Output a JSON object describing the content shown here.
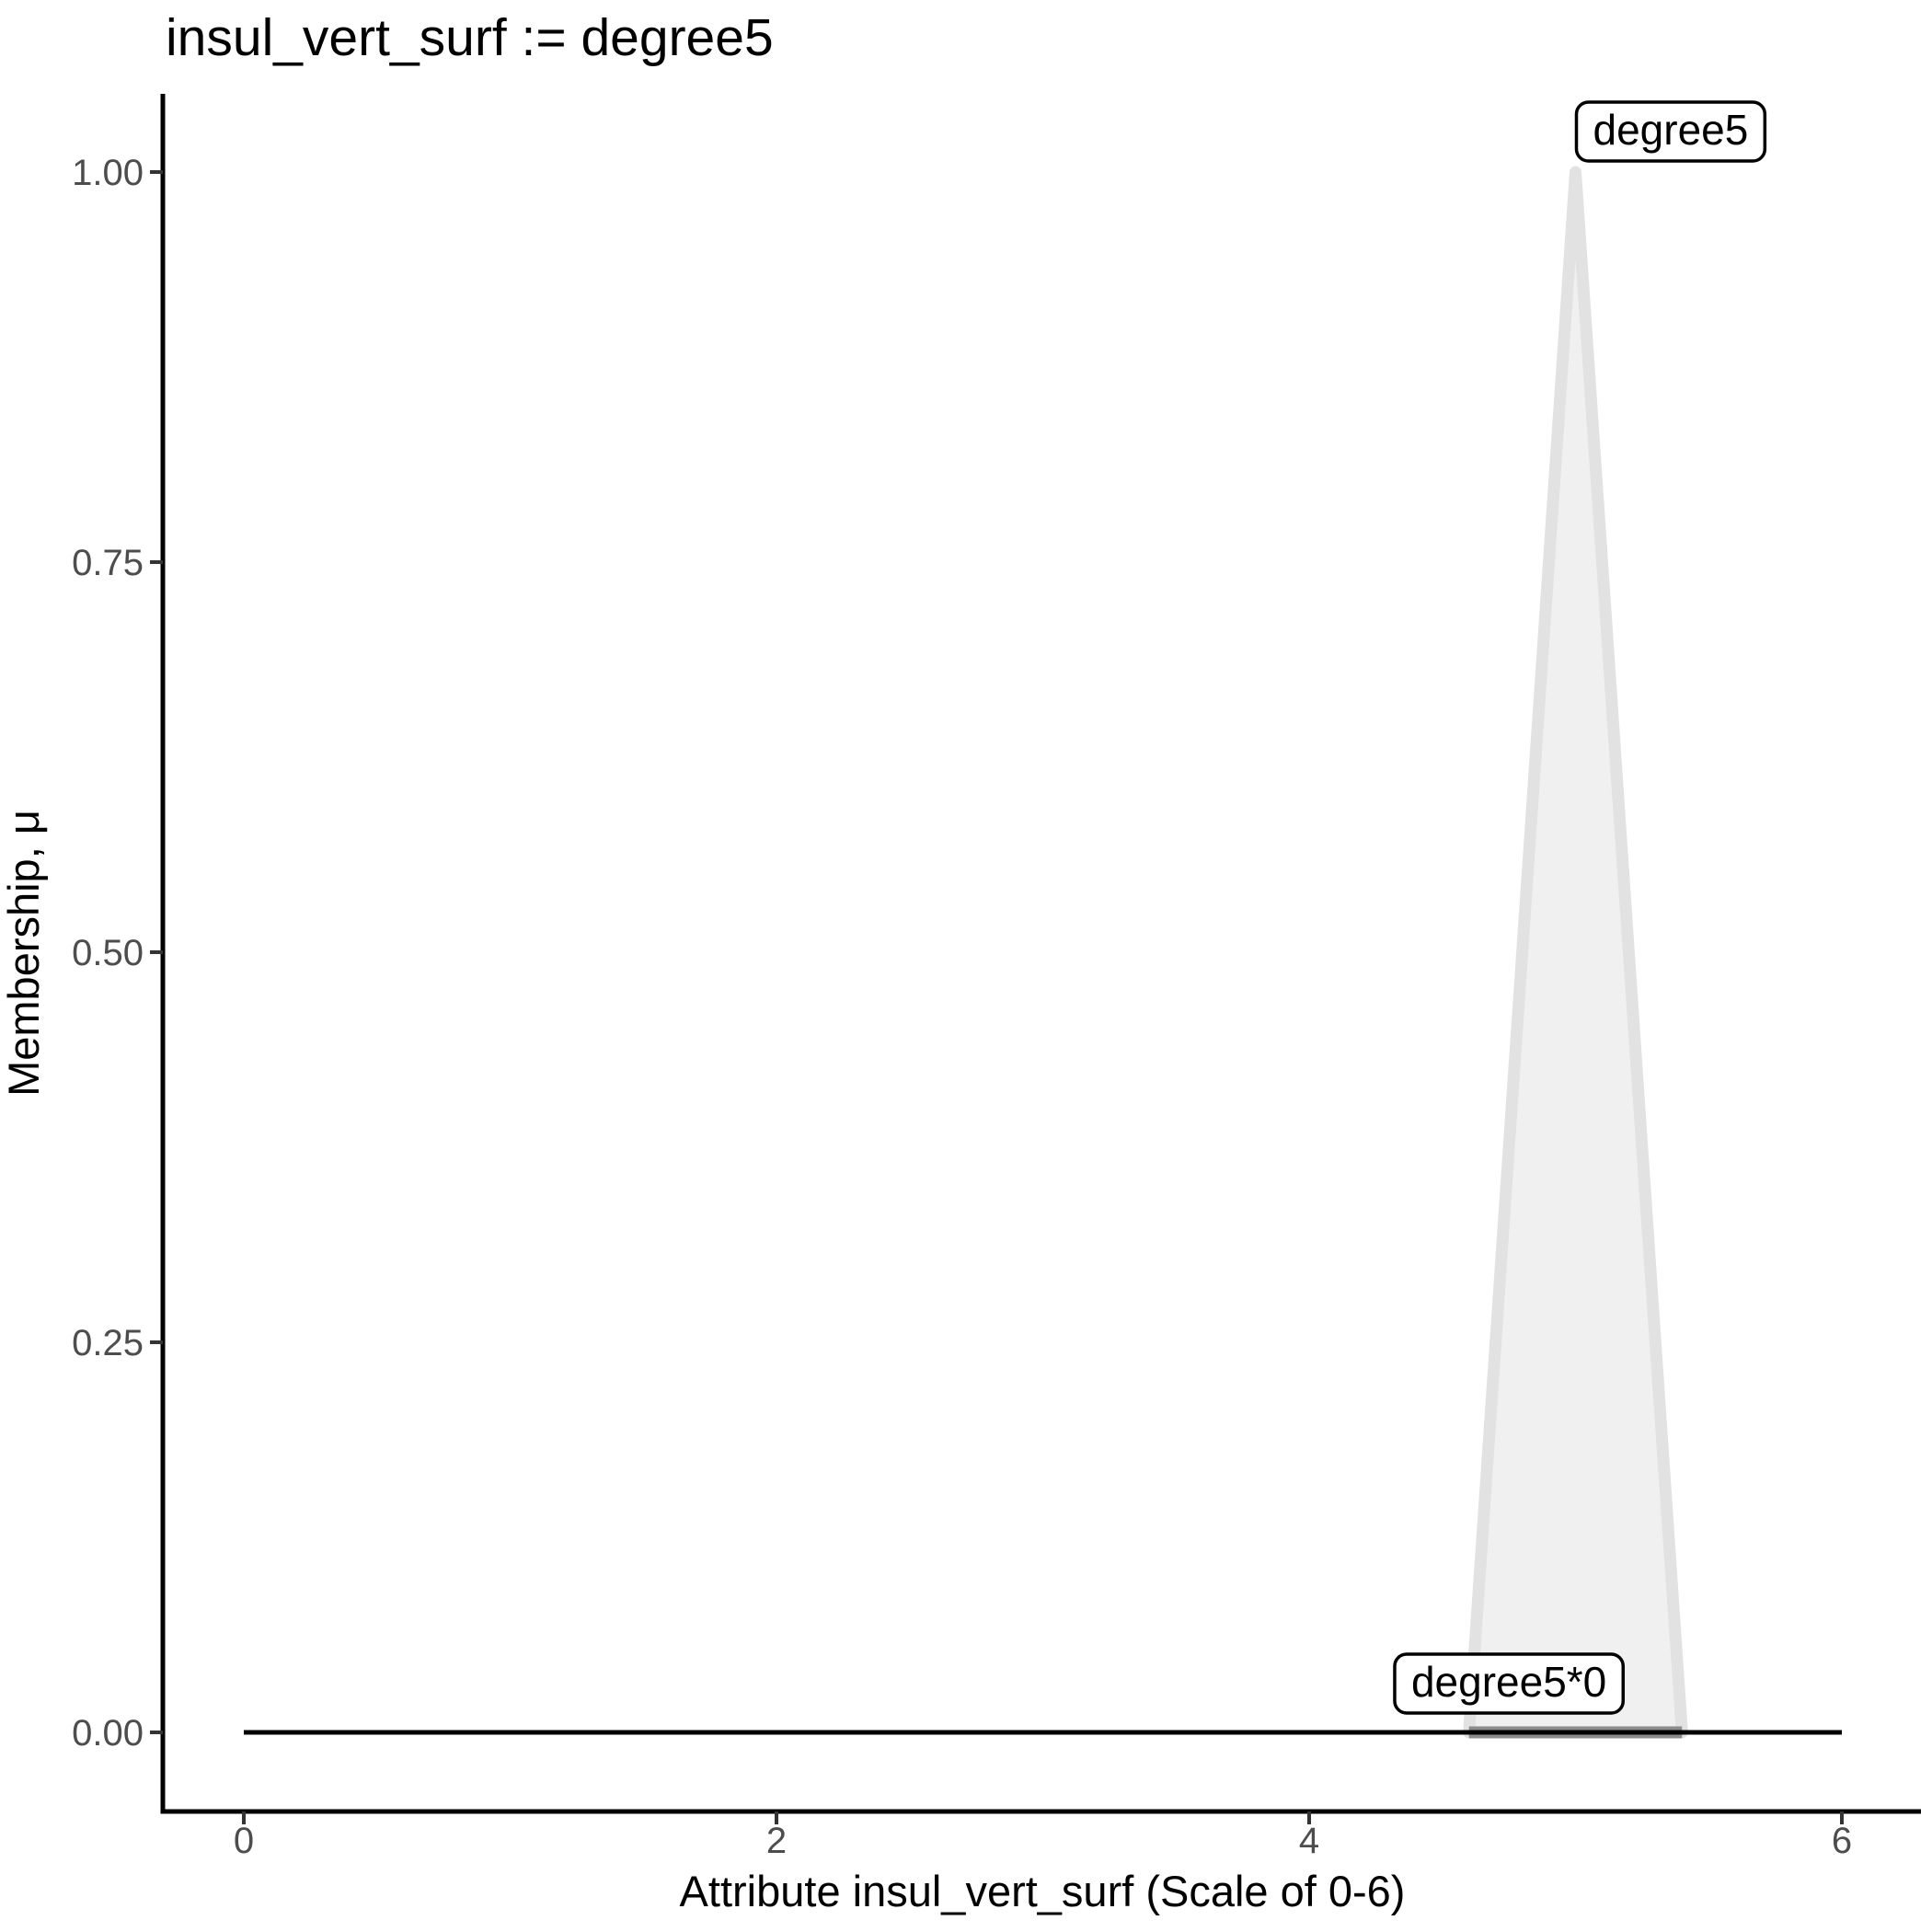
{
  "chart_data": {
    "type": "area",
    "title": "insul_vert_surf := degree5",
    "xlabel": "Attribute insul_vert_surf (Scale of 0-6)",
    "ylabel": "Membership, μ",
    "xlim": [
      0,
      6
    ],
    "ylim": [
      0,
      1
    ],
    "grid": false,
    "legend_position": "none",
    "x_ticks": [
      {
        "v": 0,
        "label": "0"
      },
      {
        "v": 2,
        "label": "2"
      },
      {
        "v": 4,
        "label": "4"
      },
      {
        "v": 6,
        "label": "6"
      }
    ],
    "y_ticks": [
      {
        "v": 0,
        "label": "0.00"
      },
      {
        "v": 0.25,
        "label": "0.25"
      },
      {
        "v": 0.5,
        "label": "0.50"
      },
      {
        "v": 0.75,
        "label": "0.75"
      },
      {
        "v": 1,
        "label": "1.00"
      }
    ],
    "series": [
      {
        "name": "degree5",
        "kind": "membership-area",
        "points": [
          [
            4.6,
            0
          ],
          [
            5,
            1
          ],
          [
            5.4,
            0
          ]
        ],
        "fill": "#f0f0f0",
        "stroke": "#e2e2e2",
        "stroke_width": 13
      },
      {
        "name": "degree5*0",
        "kind": "activation-line",
        "points": [
          [
            4.6,
            0
          ],
          [
            5.4,
            0
          ]
        ],
        "stroke": "#8c8c8c",
        "stroke_width": 13
      },
      {
        "name": "zero-baseline",
        "kind": "line",
        "points": [
          [
            0,
            0
          ],
          [
            6,
            0
          ]
        ],
        "stroke": "#000000",
        "stroke_width": 5
      }
    ],
    "annotations": [
      {
        "text": "degree5",
        "anchor": [
          5,
          1
        ],
        "placement": "top-right"
      },
      {
        "text": "degree5*0",
        "anchor": [
          4.75,
          0
        ],
        "placement": "above-baseline"
      }
    ]
  },
  "style": {
    "background": "#ffffff",
    "axis_line_color": "#000000",
    "tick_mark_color": "#333333",
    "tick_label_color": "#4d4d4d",
    "annotation_box_fill": "#ffffff",
    "annotation_box_border": "#000000"
  }
}
